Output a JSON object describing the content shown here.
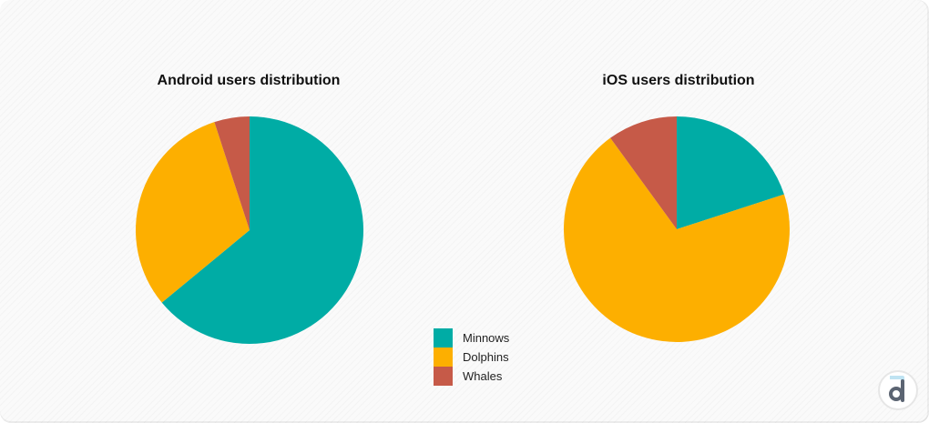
{
  "colors": {
    "minnows": "#00aca5",
    "dolphins": "#fdaf00",
    "whales": "#c65a48"
  },
  "legend": {
    "items": [
      {
        "label": "Minnows",
        "color": "#00aca5"
      },
      {
        "label": "Dolphins",
        "color": "#fdaf00"
      },
      {
        "label": "Whales",
        "color": "#c65a48"
      }
    ]
  },
  "logo": {
    "icon": "devtodev-logo-icon"
  },
  "chart_data": [
    {
      "type": "pie",
      "title": "Android users distribution",
      "series": [
        {
          "name": "Minnows",
          "value": 64,
          "color": "#00aca5"
        },
        {
          "name": "Dolphins",
          "value": 31,
          "color": "#fdaf00"
        },
        {
          "name": "Whales",
          "value": 5,
          "color": "#c65a48"
        }
      ]
    },
    {
      "type": "pie",
      "title": "iOS users distribution",
      "series": [
        {
          "name": "Minnows",
          "value": 20,
          "color": "#00aca5"
        },
        {
          "name": "Dolphins",
          "value": 70,
          "color": "#fdaf00"
        },
        {
          "name": "Whales",
          "value": 10,
          "color": "#c65a48"
        }
      ]
    }
  ]
}
